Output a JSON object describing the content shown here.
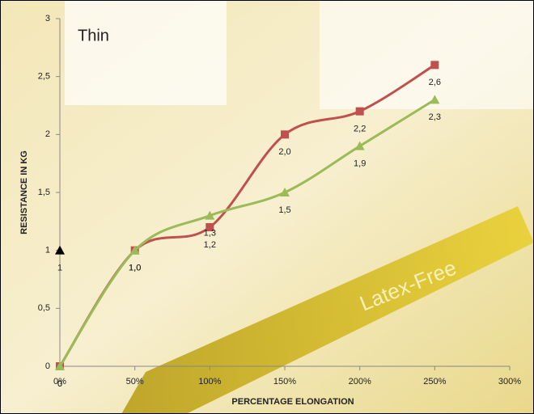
{
  "chart_data": {
    "type": "line",
    "title": "Thin",
    "x_label": "PERCENTAGE ELONGATION",
    "y_label": "RESISTANCE IN KG",
    "annotation": "Latex-Free",
    "x": [
      0,
      50,
      100,
      150,
      200,
      250
    ],
    "series": [
      {
        "color": "#c0504d",
        "marker": "square",
        "values": [
          0,
          1.0,
          1.2,
          2.0,
          2.2,
          2.6
        ],
        "value_labels": [
          "0",
          "1,0",
          "1,2",
          "2,0",
          "2,2",
          "2,6"
        ]
      },
      {
        "color": "#9bbb59",
        "marker": "triangle",
        "values": [
          0,
          1.0,
          1.3,
          1.5,
          1.9,
          2.3
        ],
        "value_labels": [
          "0",
          "1,0",
          "1,3",
          "1,5",
          "1,9",
          "2,3"
        ]
      },
      {
        "color": "#000000",
        "marker": "triangle",
        "values": [
          1,
          null,
          null,
          null,
          null,
          null
        ],
        "value_labels": [
          "1",
          null,
          null,
          null,
          null,
          null
        ]
      }
    ],
    "xlim": [
      0,
      300
    ],
    "xticks": [
      {
        "value": 0,
        "label": "0%"
      },
      {
        "value": 50,
        "label": "50%"
      },
      {
        "value": 100,
        "label": "100%"
      },
      {
        "value": 150,
        "label": "150%"
      },
      {
        "value": 200,
        "label": "200%"
      },
      {
        "value": 250,
        "label": "250%"
      },
      {
        "value": 300,
        "label": "300%"
      }
    ],
    "ylim": [
      0,
      3
    ],
    "yticks": [
      0,
      {
        "value": 0.5,
        "label": "0,5"
      },
      1,
      {
        "value": 1.5,
        "label": "1,5"
      },
      2,
      {
        "value": 2.5,
        "label": "2,5"
      },
      3
    ]
  }
}
